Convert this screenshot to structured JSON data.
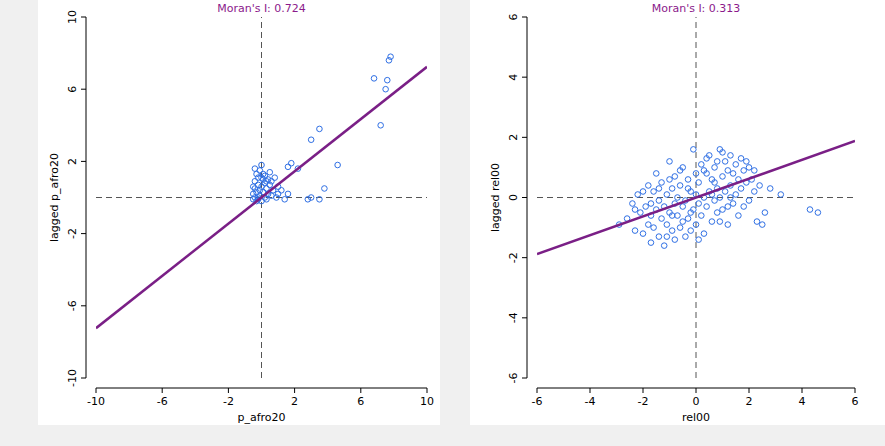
{
  "chart_data": [
    {
      "type": "scatter",
      "title": "Moran's I: 0.724",
      "title_color": "#8b1a8b",
      "x_label": "p_afro20",
      "y_label": "lagged p_afro20",
      "xlim": [
        -10,
        10
      ],
      "ylim": [
        -10,
        10
      ],
      "xticks": [
        -10,
        -6,
        -2,
        2,
        6,
        10
      ],
      "yticks": [
        -10,
        -6,
        -2,
        2,
        6,
        10
      ],
      "vline": 0,
      "hline": 0,
      "color": "#2f6fe4",
      "marker": "circle",
      "x": [
        -0.5,
        -0.5,
        -0.4,
        -0.4,
        -0.4,
        -0.3,
        -0.3,
        -0.3,
        -0.2,
        -0.2,
        -0.2,
        -0.1,
        -0.1,
        -0.1,
        0.0,
        0.0,
        0.0,
        0.1,
        0.1,
        0.1,
        0.2,
        0.2,
        0.2,
        0.3,
        0.3,
        0.4,
        0.4,
        0.5,
        0.5,
        0.6,
        0.6,
        0.7,
        0.8,
        0.9,
        1.0,
        -0.4,
        -0.5,
        0.0,
        0.3,
        -0.2,
        1.0,
        1.4,
        1.6,
        1.6,
        1.8,
        2.2,
        2.8,
        3.0,
        3.5,
        3.8,
        4.6,
        3.0,
        3.5,
        7.2,
        7.5,
        7.6,
        6.8,
        7.7,
        7.8,
        1.2
      ],
      "values": [
        0.2,
        -0.1,
        0.5,
        0.0,
        0.9,
        1.3,
        -0.2,
        0.3,
        0.7,
        1.1,
        -0.1,
        0.4,
        1.5,
        0.1,
        1.8,
        0.6,
        -0.2,
        1.0,
        0.3,
        1.3,
        0.0,
        0.8,
        1.2,
        0.5,
        -0.1,
        1.0,
        0.2,
        0.7,
        1.4,
        0.1,
        0.9,
        0.4,
        1.1,
        0.0,
        0.6,
        1.6,
        0.6,
        1.1,
        0.9,
        0.0,
        0.2,
        -0.1,
        0.2,
        1.7,
        1.9,
        1.6,
        -0.1,
        0.0,
        -0.1,
        0.5,
        1.8,
        3.2,
        3.8,
        4.0,
        6.0,
        6.5,
        6.6,
        7.6,
        7.8,
        0.4
      ],
      "fit": {
        "type": "line",
        "color": "#7a1f86",
        "x": [
          -10,
          10
        ],
        "values": [
          -7.24,
          7.24
        ]
      }
    },
    {
      "type": "scatter",
      "title": "Moran's I: 0.313",
      "title_color": "#8b1a8b",
      "x_label": "rel00",
      "y_label": "lagged rel00",
      "xlim": [
        -6,
        6
      ],
      "ylim": [
        -6,
        6
      ],
      "xticks": [
        -6,
        -4,
        -2,
        0,
        2,
        4,
        6
      ],
      "yticks": [
        -6,
        -4,
        -2,
        0,
        2,
        4,
        6
      ],
      "vline": 0,
      "hline": 0,
      "color": "#2f6fe4",
      "marker": "circle",
      "x": [
        -2.9,
        -2.6,
        -2.4,
        -2.3,
        -2.2,
        -2.1,
        -2.0,
        -1.9,
        -1.8,
        -1.8,
        -1.7,
        -1.7,
        -1.6,
        -1.6,
        -1.5,
        -1.5,
        -1.4,
        -1.4,
        -1.3,
        -1.3,
        -1.2,
        -1.2,
        -1.1,
        -1.1,
        -1.0,
        -1.0,
        -0.9,
        -0.9,
        -0.8,
        -0.8,
        -0.8,
        -0.7,
        -0.7,
        -0.6,
        -0.6,
        -0.5,
        -0.5,
        -0.4,
        -0.4,
        -0.3,
        -0.3,
        -0.2,
        -0.2,
        -0.1,
        -0.1,
        0.0,
        0.0,
        0.1,
        0.1,
        0.2,
        0.2,
        0.3,
        0.3,
        0.4,
        0.4,
        0.5,
        0.5,
        0.6,
        0.6,
        0.7,
        0.7,
        0.8,
        0.8,
        0.9,
        0.9,
        1.0,
        1.0,
        1.1,
        1.1,
        1.2,
        1.2,
        1.3,
        1.3,
        1.4,
        1.4,
        1.5,
        1.5,
        1.6,
        1.6,
        1.7,
        1.7,
        1.8,
        1.8,
        1.9,
        2.0,
        2.0,
        2.1,
        2.2,
        2.3,
        2.4,
        2.5,
        2.6,
        2.8,
        3.2,
        4.3,
        4.6,
        -2.0,
        -1.0,
        0.0,
        1.0,
        -0.5,
        0.3,
        -1.4,
        0.8,
        1.2,
        -0.2,
        0.6,
        -0.9,
        0.4,
        -1.7,
        0.1,
        1.9,
        -0.6,
        0.9,
        -1.1,
        1.3,
        -0.3,
        0.7,
        -2.3,
        2.2
      ],
      "values": [
        -0.9,
        -0.7,
        -0.2,
        -1.1,
        0.1,
        -0.5,
        -1.2,
        -0.3,
        0.4,
        -0.9,
        -1.5,
        -0.6,
        0.2,
        -1.0,
        -0.4,
        0.8,
        -1.3,
        -0.1,
        -0.7,
        0.5,
        -1.6,
        -0.3,
        0.1,
        -0.9,
        1.2,
        -0.5,
        -1.1,
        0.3,
        -0.2,
        -1.4,
        0.7,
        -0.6,
        0.0,
        -1.0,
        0.4,
        -0.3,
        1.0,
        -1.3,
        -0.1,
        0.6,
        -0.7,
        0.2,
        -1.1,
        1.6,
        -0.4,
        0.1,
        -0.9,
        0.5,
        -0.2,
        1.1,
        -0.6,
        0.0,
        -1.2,
        0.8,
        -0.3,
        1.4,
        0.2,
        -0.8,
        0.6,
        -0.1,
        1.0,
        0.3,
        -0.5,
        1.6,
        0.0,
        0.7,
        -0.4,
        1.2,
        0.2,
        -0.9,
        0.9,
        0.4,
        1.4,
        -0.2,
        0.8,
        1.1,
        0.1,
        0.6,
        -0.6,
        1.3,
        0.3,
        0.9,
        -0.3,
        0.5,
        1.0,
        -0.1,
        0.6,
        0.2,
        -0.8,
        0.4,
        -0.9,
        -0.5,
        0.3,
        0.1,
        -0.4,
        -0.5,
        0.2,
        0.6,
        0.8,
        1.5,
        -0.8,
        0.9,
        0.3,
        1.2,
        -0.3,
        -0.5,
        0.1,
        -0.6,
        1.3,
        -0.2,
        -1.4,
        1.2,
        0.9,
        -0.8,
        -1.3,
        0.0,
        0.3,
        0.5,
        -0.4,
        0.9
      ],
      "fit": {
        "type": "line",
        "color": "#7a1f86",
        "x": [
          -6,
          6
        ],
        "values": [
          -1.878,
          1.878
        ]
      }
    }
  ]
}
